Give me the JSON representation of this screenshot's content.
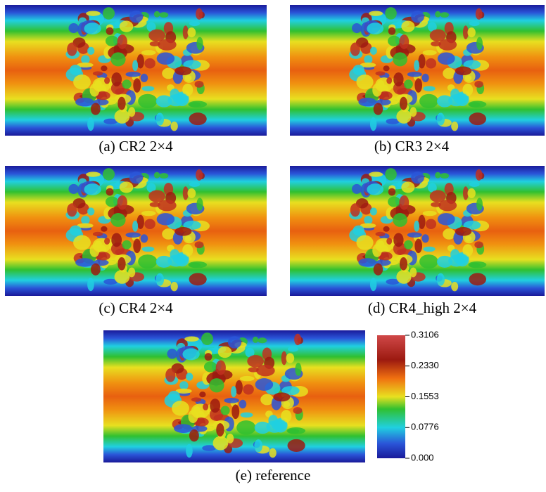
{
  "panels": [
    {
      "caption": "(a) CR2 2×4"
    },
    {
      "caption": "(b) CR3 2×4"
    },
    {
      "caption": "(c) CR4 2×4"
    },
    {
      "caption": "(d) CR4_high 2×4"
    },
    {
      "caption": "(e) reference"
    }
  ],
  "colorbar": {
    "ticks": [
      0.3106,
      {
        "value": 0.233,
        "label": "0.2330"
      },
      0.1553,
      0.0776,
      {
        "value": 0,
        "label": "0.000"
      }
    ]
  }
}
